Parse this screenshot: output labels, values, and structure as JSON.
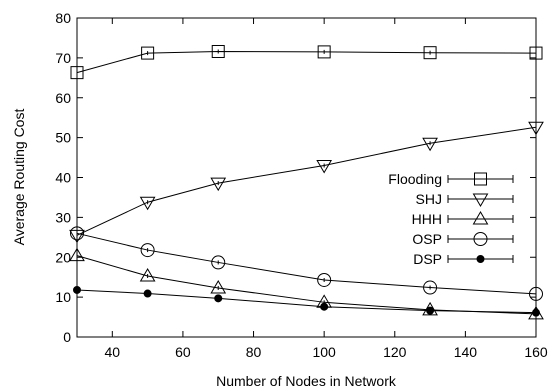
{
  "chart_data": {
    "type": "line",
    "title": "",
    "xlabel": "Number of Nodes in Network",
    "ylabel": "Average Routing Cost",
    "xlim": [
      30,
      160
    ],
    "ylim": [
      0,
      80
    ],
    "xticks": [
      40,
      60,
      80,
      100,
      120,
      140,
      160
    ],
    "yticks": [
      0,
      10,
      20,
      30,
      40,
      50,
      60,
      70,
      80
    ],
    "grid": false,
    "legend_position": "right",
    "x": [
      30,
      50,
      70,
      100,
      130,
      160
    ],
    "series": [
      {
        "name": "Flooding",
        "marker": "square",
        "values": [
          66.3,
          71.2,
          71.6,
          71.5,
          71.3,
          71.2
        ]
      },
      {
        "name": "SHJ",
        "marker": "triangle-down",
        "values": [
          25.5,
          33.8,
          38.6,
          43.0,
          48.6,
          52.6
        ]
      },
      {
        "name": "HHH",
        "marker": "triangle-up",
        "values": [
          20.4,
          15.3,
          12.3,
          8.7,
          6.8,
          5.8
        ]
      },
      {
        "name": "OSP",
        "marker": "circle-open",
        "values": [
          26.0,
          21.8,
          18.7,
          14.3,
          12.4,
          10.8
        ]
      },
      {
        "name": "DSP",
        "marker": "circle-filled",
        "values": [
          11.8,
          10.9,
          9.7,
          7.6,
          6.6,
          6.1
        ]
      }
    ]
  }
}
